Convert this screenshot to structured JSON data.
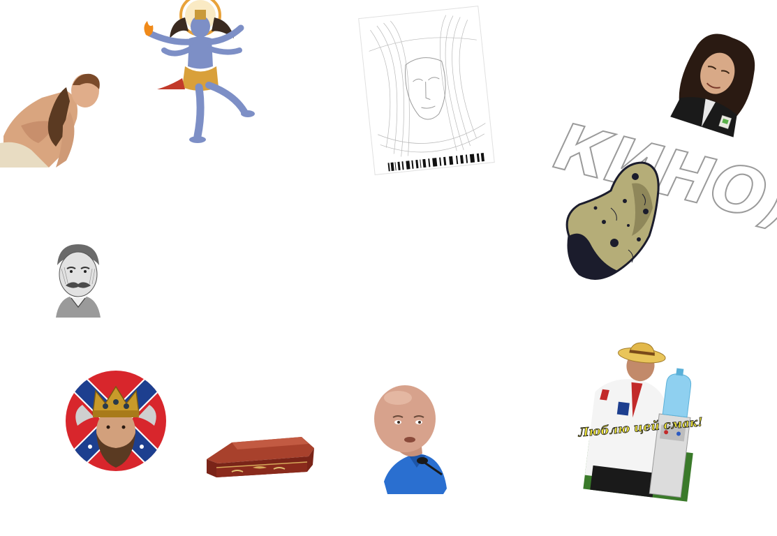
{
  "canvas": {
    "background": "#ffffff"
  },
  "stickers": [
    {
      "id": "barechested-man-sticker",
      "description": "long-haired shirtless man leaning forward"
    },
    {
      "id": "shiva-sticker",
      "description": "dancing four-armed blue deity with halo"
    },
    {
      "id": "line-art-portrait-sticker",
      "description": "tilted sheet of line-drawn face with barcode strip"
    },
    {
      "id": "curly-hair-man-sticker",
      "description": "man with long curly dark hair"
    },
    {
      "id": "kino-logo-sticker",
      "description": "outlined KINO logo lettering"
    },
    {
      "id": "asteroid-sticker",
      "description": "cratered yellow-grey asteroid"
    },
    {
      "id": "bearded-elder-portrait-sticker",
      "description": "engraving of elderly man with moustache"
    },
    {
      "id": "crowned-man-flag-sticker",
      "description": "bearded man with crown on round flag background"
    },
    {
      "id": "coffin-sticker",
      "description": "red wooden coffin"
    },
    {
      "id": "bald-man-sticker",
      "description": "bald man in blue shirt with microphone"
    },
    {
      "id": "man-water-cooler-sticker",
      "description": "man in straw hat beside water cooler"
    }
  ],
  "kino_logo": {
    "text": "КИНО)"
  },
  "water_cooler_caption": {
    "text": "Люблю цей смак!"
  },
  "colors": {
    "confederate_red": "#d8262c",
    "confederate_blue": "#1d3f8f",
    "shiva_blue": "#7d8fc6",
    "coffin_red": "#8a2a1c",
    "asteroid_yellow": "#b5ad78",
    "asteroid_dark": "#1b1c2c",
    "shirt_blue": "#2a6fd0",
    "cooler_water": "#8fd0f0",
    "caption_yellow": "#f2e838"
  }
}
